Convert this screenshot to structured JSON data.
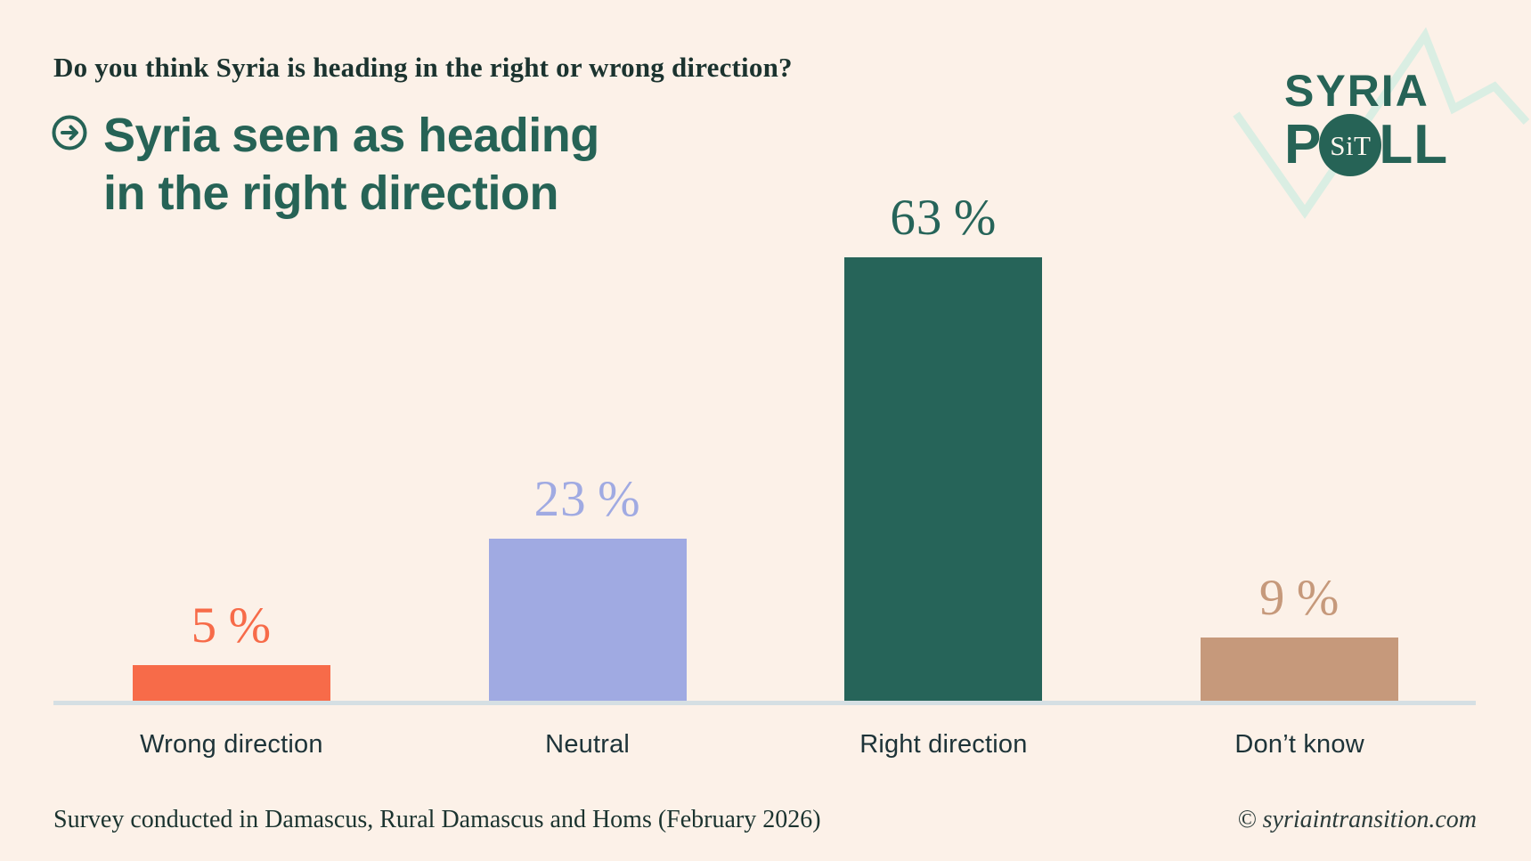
{
  "page": {
    "background": "#FCF1E8"
  },
  "header": {
    "question": "Do you think Syria is heading in the right or wrong direction?",
    "title_line1": "Syria seen as heading",
    "title_line2": "in the right direction",
    "title_color": "#266356",
    "arrow_icon": "circle-arrow-right-icon"
  },
  "logo": {
    "line1": "SYRIA",
    "line2_prefix": "P",
    "line2_suffix": "LL",
    "badge_text": "SiT",
    "text_color": "#266356",
    "zigzag_color": "#DAEEE3"
  },
  "chart_data": {
    "type": "bar",
    "title": "Syria seen as heading in the right direction",
    "question": "Do you think Syria is heading in the right or wrong direction?",
    "categories": [
      "Wrong direction",
      "Neutral",
      "Right direction",
      "Don’t know"
    ],
    "values": [
      5,
      23,
      63,
      9
    ],
    "value_labels": [
      "5 %",
      "23 %",
      "63 %",
      "9 %"
    ],
    "bar_colors": [
      "#F76B49",
      "#A0AAE2",
      "#266459",
      "#C6997B"
    ],
    "xlabel": "",
    "ylabel": "",
    "ylim": [
      0,
      70
    ],
    "grid": false,
    "legend": false,
    "baseline_color": "#D5DFE3",
    "category_label_color": "#1D3338"
  },
  "footer": {
    "source": "Survey conducted in Damascus, Rural Damascus and Homs (February 2026)",
    "credit": "© syriaintransition.com"
  }
}
